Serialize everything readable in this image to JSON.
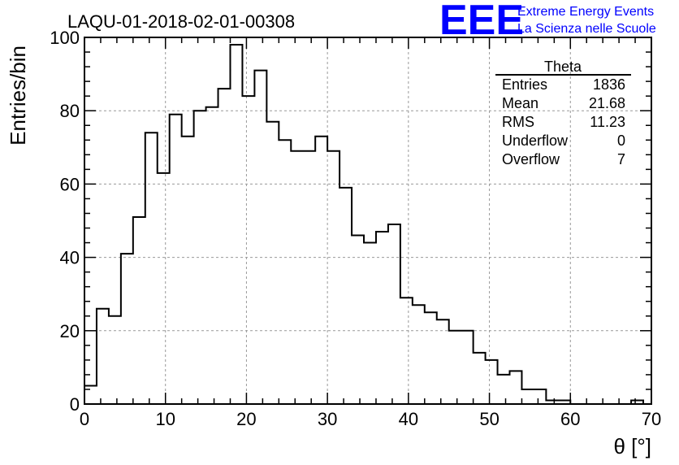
{
  "chart_data": {
    "type": "histogram",
    "title": "LAQU-01-2018-02-01-00308",
    "xlabel": "θ [°]",
    "ylabel": "Entries/bin",
    "xlim": [
      0,
      70
    ],
    "ylim": [
      0,
      100
    ],
    "grid": true,
    "bin_width": 1.5,
    "bin_edges_start": 0,
    "values": [
      5,
      26,
      24,
      41,
      51,
      74,
      63,
      79,
      73,
      80,
      81,
      86,
      98,
      84,
      91,
      77,
      72,
      69,
      69,
      73,
      69,
      59,
      46,
      44,
      47,
      49,
      29,
      27,
      25,
      23,
      20,
      20,
      14,
      12,
      8,
      9,
      4,
      4,
      1,
      1,
      0,
      0,
      0,
      0,
      0,
      1
    ],
    "x_ticks": [
      0,
      10,
      20,
      30,
      40,
      50,
      60,
      70
    ],
    "y_ticks": [
      0,
      20,
      40,
      60,
      80,
      100
    ],
    "x_tick_labels": [
      "0",
      "10",
      "20",
      "30",
      "40",
      "50",
      "60",
      "70"
    ],
    "y_tick_labels": [
      "0",
      "20",
      "40",
      "60",
      "80",
      "100"
    ],
    "stats": {
      "name": "Theta",
      "rows": [
        {
          "label": "Entries",
          "value": "1836"
        },
        {
          "label": "Mean",
          "value": "21.68"
        },
        {
          "label": "RMS",
          "value": "11.23"
        },
        {
          "label": "Underflow",
          "value": "0"
        },
        {
          "label": "Overflow",
          "value": "7"
        }
      ]
    }
  },
  "logo": {
    "text": "EEE",
    "line1": "Extreme Energy Events",
    "line2": "La Scienza nelle Scuole",
    "color": "#0000ff"
  }
}
